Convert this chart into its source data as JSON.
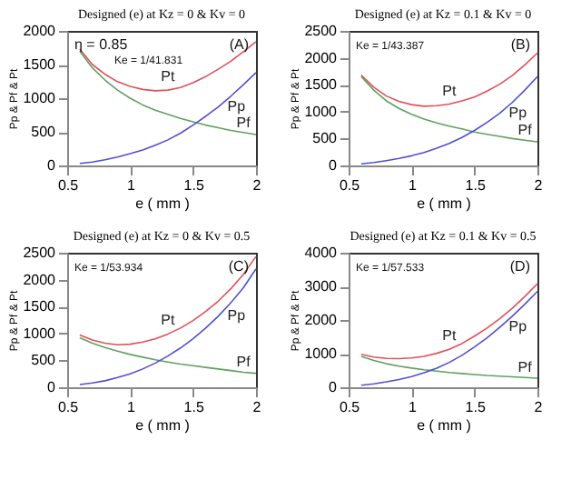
{
  "chart_data": [
    {
      "type": "line",
      "title": "Designed (e) at Kz = 0 & Kv = 0",
      "xlabel": "e   ( mm )",
      "ylabel": "Pp & Pf & Pt",
      "x": [
        0.6,
        0.7,
        0.8,
        0.9,
        1.0,
        1.1,
        1.2,
        1.3,
        1.4,
        1.5,
        1.6,
        1.7,
        1.8,
        1.9,
        2.0
      ],
      "xlim": [
        0.5,
        2
      ],
      "xticks": [
        0.5,
        1,
        1.5,
        2
      ],
      "ylim": [
        0,
        2000
      ],
      "yticks": [
        0,
        500,
        1000,
        1500,
        2000
      ],
      "annotations": [
        "η = 0.85",
        "Ke = 1/41.831",
        "(A)"
      ],
      "series": [
        {
          "name": "Pt",
          "color": "#e0505a",
          "values": [
            1730,
            1500,
            1355,
            1245,
            1175,
            1130,
            1110,
            1120,
            1160,
            1230,
            1320,
            1430,
            1550,
            1690,
            1840
          ]
        },
        {
          "name": "Pf",
          "color": "#60a060",
          "values": [
            1700,
            1450,
            1270,
            1120,
            1000,
            900,
            820,
            760,
            700,
            650,
            600,
            560,
            520,
            490,
            460
          ]
        },
        {
          "name": "Pp",
          "color": "#5050d0",
          "values": [
            30,
            50,
            85,
            125,
            175,
            230,
            300,
            380,
            480,
            600,
            730,
            870,
            1030,
            1200,
            1380
          ]
        }
      ]
    },
    {
      "type": "line",
      "title": "Designed (e) at Kz = 0.1 & Kv = 0",
      "xlabel": "e   ( mm )",
      "ylabel": "Pp & Pf & Pt",
      "x": [
        0.6,
        0.7,
        0.8,
        0.9,
        1.0,
        1.1,
        1.2,
        1.3,
        1.4,
        1.5,
        1.6,
        1.7,
        1.8,
        1.9,
        2.0
      ],
      "xlim": [
        0.5,
        2
      ],
      "xticks": [
        0.5,
        1,
        1.5,
        2
      ],
      "ylim": [
        0,
        2500
      ],
      "yticks": [
        0,
        500,
        1000,
        1500,
        2000,
        2500
      ],
      "annotations": [
        "Ke = 1/43.387",
        "(B)"
      ],
      "series": [
        {
          "name": "Pt",
          "color": "#e0505a",
          "values": [
            1680,
            1455,
            1290,
            1190,
            1130,
            1100,
            1110,
            1140,
            1200,
            1270,
            1380,
            1510,
            1670,
            1870,
            2090
          ]
        },
        {
          "name": "Pf",
          "color": "#60a060",
          "values": [
            1650,
            1400,
            1200,
            1060,
            950,
            860,
            790,
            730,
            680,
            620,
            580,
            540,
            500,
            470,
            440
          ]
        },
        {
          "name": "Pp",
          "color": "#5050d0",
          "values": [
            30,
            55,
            90,
            130,
            180,
            240,
            320,
            410,
            520,
            650,
            800,
            970,
            1170,
            1400,
            1650
          ]
        }
      ]
    },
    {
      "type": "line",
      "title": "Designed (e) at Kz = 0 & Kv = 0.5",
      "xlabel": "e   ( mm )",
      "ylabel": "Pp & Pf & Pt",
      "x": [
        0.6,
        0.7,
        0.8,
        0.9,
        1.0,
        1.1,
        1.2,
        1.3,
        1.4,
        1.5,
        1.6,
        1.7,
        1.8,
        1.9,
        2.0
      ],
      "xlim": [
        0.5,
        2
      ],
      "xticks": [
        0.5,
        1,
        1.5,
        2
      ],
      "ylim": [
        0,
        2500
      ],
      "yticks": [
        0,
        500,
        1000,
        1500,
        2000,
        2500
      ],
      "annotations": [
        "Ke = 1/53.934",
        "(C)"
      ],
      "series": [
        {
          "name": "Pt",
          "color": "#e0505a",
          "values": [
            970,
            880,
            820,
            790,
            800,
            840,
            900,
            990,
            1100,
            1240,
            1410,
            1600,
            1830,
            2100,
            2430
          ]
        },
        {
          "name": "Pf",
          "color": "#60a060",
          "values": [
            920,
            820,
            740,
            670,
            610,
            560,
            510,
            470,
            430,
            400,
            370,
            340,
            310,
            280,
            260
          ]
        },
        {
          "name": "Pp",
          "color": "#5050d0",
          "values": [
            50,
            80,
            120,
            180,
            250,
            340,
            450,
            580,
            730,
            900,
            1100,
            1320,
            1570,
            1850,
            2200
          ]
        }
      ]
    },
    {
      "type": "line",
      "title": "Designed (e) at Kz = 0.1 & Kv = 0.5",
      "xlabel": "e   ( mm )",
      "ylabel": "Pp & Pf & Pt",
      "x": [
        0.6,
        0.7,
        0.8,
        0.9,
        1.0,
        1.1,
        1.2,
        1.3,
        1.4,
        1.5,
        1.6,
        1.7,
        1.8,
        1.9,
        2.0
      ],
      "xlim": [
        0.5,
        2
      ],
      "xticks": [
        0.5,
        1,
        1.5,
        2
      ],
      "ylim": [
        0,
        4000
      ],
      "yticks": [
        0,
        1000,
        2000,
        3000,
        4000
      ],
      "annotations": [
        "Ke = 1/57.533",
        "(D)"
      ],
      "series": [
        {
          "name": "Pt",
          "color": "#e0505a",
          "values": [
            980,
            900,
            860,
            850,
            870,
            920,
            1010,
            1130,
            1300,
            1520,
            1760,
            2040,
            2350,
            2700,
            3080
          ]
        },
        {
          "name": "Pf",
          "color": "#60a060",
          "values": [
            920,
            800,
            700,
            630,
            570,
            520,
            480,
            440,
            410,
            380,
            350,
            330,
            310,
            290,
            270
          ]
        },
        {
          "name": "Pp",
          "color": "#5050d0",
          "values": [
            60,
            100,
            160,
            230,
            320,
            430,
            570,
            740,
            950,
            1200,
            1470,
            1780,
            2110,
            2470,
            2850
          ]
        }
      ]
    }
  ]
}
